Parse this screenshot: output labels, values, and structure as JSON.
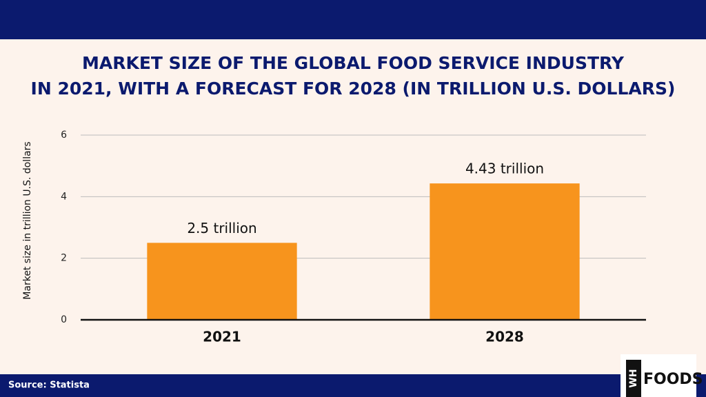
{
  "chart_data": {
    "type": "bar",
    "title": [
      "MARKET SIZE OF THE GLOBAL FOOD SERVICE INDUSTRY",
      "IN 2021, WITH A FORECAST FOR 2028 (IN TRILLION U.S. DOLLARS)"
    ],
    "y_label": "Market size in trillion U.S. dollars",
    "categories": [
      "2021",
      "2028"
    ],
    "values": [
      2.5,
      4.43
    ],
    "value_labels": [
      "2.5 trillion",
      "4.43 trillion"
    ],
    "color": "#f7941d",
    "ylim": [
      0,
      6
    ],
    "yticks": [
      0,
      2,
      4,
      6
    ],
    "grid": true,
    "source": "Source: Statista",
    "logo": {
      "mark": "WH",
      "text": "FOODS"
    }
  }
}
